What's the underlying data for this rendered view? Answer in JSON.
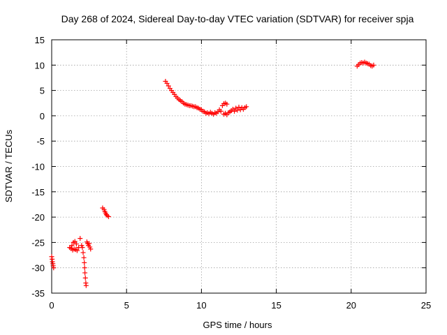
{
  "chart_data": {
    "type": "scatter",
    "title": "Day 268 of 2024, Sidereal Day-to-day VTEC variation (SDTVAR) for receiver spja",
    "xlabel": "GPS time / hours",
    "ylabel": "SDTVAR / TECUs",
    "xlim": [
      0,
      25
    ],
    "ylim": [
      -35,
      15
    ],
    "xticks": [
      "0",
      "5",
      "10",
      "15",
      "20",
      "25"
    ],
    "yticks": [
      "15",
      "10",
      "5",
      "0",
      "-5",
      "-10",
      "-15",
      "-20",
      "-25",
      "-30",
      "-35"
    ],
    "grid": true,
    "marker": "plus",
    "color": "#ff0000",
    "series": [
      {
        "name": "SDTVAR",
        "points": [
          [
            0.0,
            -27.8
          ],
          [
            0.03,
            -28.3
          ],
          [
            0.05,
            -28.8
          ],
          [
            0.08,
            -29.2
          ],
          [
            0.1,
            -29.6
          ],
          [
            0.13,
            -30.0
          ],
          [
            1.2,
            -26.0
          ],
          [
            1.3,
            -26.2
          ],
          [
            1.35,
            -25.6
          ],
          [
            1.4,
            -26.5
          ],
          [
            1.45,
            -25.0
          ],
          [
            1.5,
            -26.3
          ],
          [
            1.55,
            -24.8
          ],
          [
            1.6,
            -26.4
          ],
          [
            1.65,
            -25.3
          ],
          [
            1.7,
            -26.6
          ],
          [
            1.8,
            -26.0
          ],
          [
            1.9,
            -24.2
          ],
          [
            2.0,
            -25.6
          ],
          [
            2.05,
            -26.0
          ],
          [
            2.1,
            -27.0
          ],
          [
            2.15,
            -28.0
          ],
          [
            2.18,
            -29.0
          ],
          [
            2.2,
            -30.0
          ],
          [
            2.22,
            -31.0
          ],
          [
            2.25,
            -32.0
          ],
          [
            2.28,
            -33.0
          ],
          [
            2.3,
            -33.5
          ],
          [
            2.35,
            -24.9
          ],
          [
            2.4,
            -25.2
          ],
          [
            2.45,
            -25.6
          ],
          [
            2.5,
            -25.2
          ],
          [
            2.55,
            -25.9
          ],
          [
            2.6,
            -26.3
          ],
          [
            3.4,
            -18.2
          ],
          [
            3.5,
            -18.5
          ],
          [
            3.55,
            -18.9
          ],
          [
            3.6,
            -19.2
          ],
          [
            3.65,
            -19.5
          ],
          [
            3.7,
            -19.7
          ],
          [
            3.8,
            -19.9
          ],
          [
            7.6,
            6.8
          ],
          [
            7.7,
            6.4
          ],
          [
            7.8,
            5.9
          ],
          [
            7.9,
            5.4
          ],
          [
            8.0,
            5.0
          ],
          [
            8.1,
            4.6
          ],
          [
            8.2,
            4.2
          ],
          [
            8.3,
            3.8
          ],
          [
            8.4,
            3.5
          ],
          [
            8.5,
            3.2
          ],
          [
            8.6,
            3.0
          ],
          [
            8.7,
            2.8
          ],
          [
            8.8,
            2.5
          ],
          [
            8.9,
            2.3
          ],
          [
            9.0,
            2.2
          ],
          [
            9.1,
            2.1
          ],
          [
            9.2,
            2.0
          ],
          [
            9.3,
            2.0
          ],
          [
            9.4,
            1.9
          ],
          [
            9.5,
            1.8
          ],
          [
            9.6,
            1.8
          ],
          [
            9.7,
            1.6
          ],
          [
            9.8,
            1.5
          ],
          [
            9.9,
            1.3
          ],
          [
            10.0,
            1.2
          ],
          [
            10.1,
            0.9
          ],
          [
            10.2,
            0.8
          ],
          [
            10.3,
            0.5
          ],
          [
            10.4,
            0.6
          ],
          [
            10.5,
            0.4
          ],
          [
            10.6,
            0.7
          ],
          [
            10.7,
            0.5
          ],
          [
            10.8,
            0.3
          ],
          [
            10.9,
            0.6
          ],
          [
            11.0,
            0.5
          ],
          [
            11.1,
            0.8
          ],
          [
            11.2,
            1.2
          ],
          [
            11.3,
            0.9
          ],
          [
            11.4,
            2.0
          ],
          [
            11.5,
            2.4
          ],
          [
            11.6,
            2.5
          ],
          [
            11.7,
            2.3
          ],
          [
            11.5,
            0.3
          ],
          [
            11.6,
            0.5
          ],
          [
            11.7,
            0.2
          ],
          [
            11.8,
            0.6
          ],
          [
            11.9,
            0.8
          ],
          [
            12.0,
            1.0
          ],
          [
            12.1,
            1.3
          ],
          [
            12.2,
            0.9
          ],
          [
            12.3,
            1.5
          ],
          [
            12.4,
            1.1
          ],
          [
            12.5,
            1.7
          ],
          [
            12.6,
            1.2
          ],
          [
            12.7,
            1.6
          ],
          [
            12.8,
            1.3
          ],
          [
            12.9,
            1.6
          ],
          [
            13.0,
            1.8
          ],
          [
            20.4,
            9.8
          ],
          [
            20.5,
            10.1
          ],
          [
            20.6,
            10.4
          ],
          [
            20.7,
            10.5
          ],
          [
            20.8,
            10.4
          ],
          [
            20.9,
            10.6
          ],
          [
            21.0,
            10.4
          ],
          [
            21.1,
            10.3
          ],
          [
            21.2,
            10.2
          ],
          [
            21.3,
            9.9
          ],
          [
            21.4,
            9.8
          ],
          [
            21.5,
            10.0
          ]
        ]
      }
    ]
  }
}
